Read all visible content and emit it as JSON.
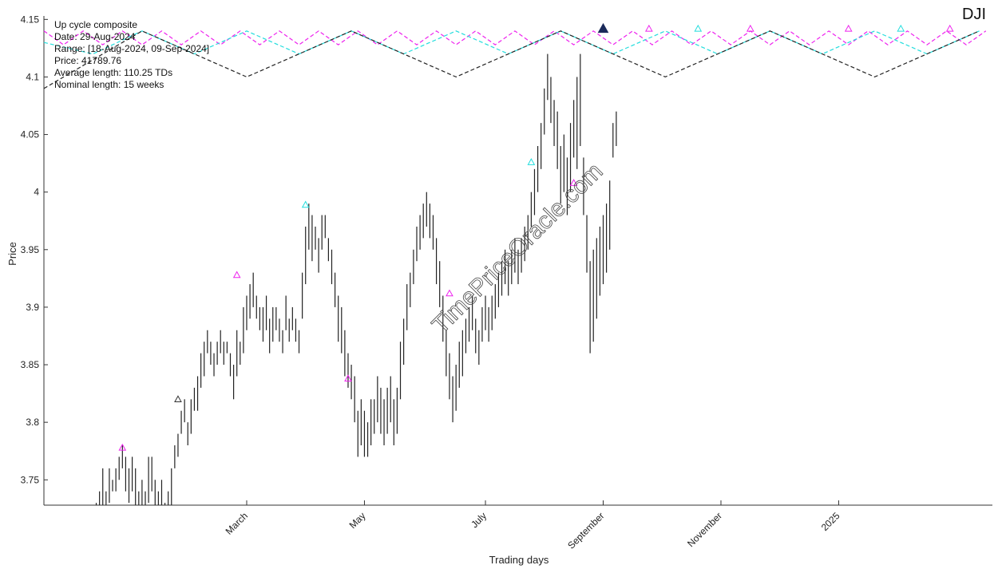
{
  "chart_data": {
    "type": "line",
    "symbol": "DJI",
    "xlabel": "Trading days",
    "ylabel": "Price",
    "ylim": [
      3.728,
      4.153
    ],
    "yticks": [
      3.75,
      3.8,
      3.85,
      3.9,
      3.95,
      4.0,
      4.05,
      4.1,
      4.15
    ],
    "ytick_labels": [
      "3.75",
      "3.8",
      "3.85",
      "3.9",
      "3.95",
      "4",
      "4.05",
      "4.1",
      "4.15"
    ],
    "xlim": [
      0,
      290
    ],
    "xticks": [
      {
        "x": 62,
        "label": "March"
      },
      {
        "x": 98,
        "label": "May"
      },
      {
        "x": 135,
        "label": "July"
      },
      {
        "x": 171,
        "label": "September"
      },
      {
        "x": 207,
        "label": "November"
      },
      {
        "x": 243,
        "label": "2025"
      }
    ],
    "info": {
      "title": "Up cycle composite",
      "date": "Date: 29-Aug-2024",
      "range": "Range: [18-Aug-2024, 09-Sep-2024]",
      "price": "Price: 41789.76",
      "avg_length": "Average length: 110.25 TDs",
      "nominal_length": "Nominal length: 15 weeks"
    },
    "watermark": "TimePriceOracle.com",
    "price_bars": [
      [
        16,
        3.7,
        3.73
      ],
      [
        17,
        3.71,
        3.74
      ],
      [
        18,
        3.72,
        3.76
      ],
      [
        19,
        3.71,
        3.74
      ],
      [
        20,
        3.73,
        3.76
      ],
      [
        21,
        3.74,
        3.75
      ],
      [
        22,
        3.74,
        3.76
      ],
      [
        23,
        3.75,
        3.77
      ],
      [
        24,
        3.76,
        3.78
      ],
      [
        25,
        3.74,
        3.77
      ],
      [
        26,
        3.73,
        3.76
      ],
      [
        27,
        3.74,
        3.77
      ],
      [
        28,
        3.72,
        3.76
      ],
      [
        29,
        3.71,
        3.74
      ],
      [
        30,
        3.72,
        3.75
      ],
      [
        31,
        3.71,
        3.74
      ],
      [
        32,
        3.73,
        3.77
      ],
      [
        33,
        3.74,
        3.77
      ],
      [
        34,
        3.72,
        3.75
      ],
      [
        35,
        3.71,
        3.74
      ],
      [
        36,
        3.72,
        3.75
      ],
      [
        37,
        3.7,
        3.73
      ],
      [
        38,
        3.71,
        3.74
      ],
      [
        39,
        3.72,
        3.76
      ],
      [
        40,
        3.76,
        3.78
      ],
      [
        41,
        3.77,
        3.79
      ],
      [
        42,
        3.79,
        3.81
      ],
      [
        43,
        3.8,
        3.82
      ],
      [
        44,
        3.78,
        3.8
      ],
      [
        45,
        3.79,
        3.82
      ],
      [
        46,
        3.81,
        3.83
      ],
      [
        47,
        3.81,
        3.84
      ],
      [
        48,
        3.83,
        3.86
      ],
      [
        49,
        3.84,
        3.87
      ],
      [
        50,
        3.86,
        3.88
      ],
      [
        51,
        3.85,
        3.87
      ],
      [
        52,
        3.84,
        3.86
      ],
      [
        53,
        3.85,
        3.87
      ],
      [
        54,
        3.86,
        3.88
      ],
      [
        55,
        3.85,
        3.87
      ],
      [
        56,
        3.86,
        3.87
      ],
      [
        57,
        3.84,
        3.86
      ],
      [
        58,
        3.82,
        3.85
      ],
      [
        59,
        3.84,
        3.88
      ],
      [
        60,
        3.85,
        3.87
      ],
      [
        61,
        3.86,
        3.9
      ],
      [
        62,
        3.88,
        3.91
      ],
      [
        63,
        3.89,
        3.92
      ],
      [
        64,
        3.9,
        3.93
      ],
      [
        65,
        3.89,
        3.91
      ],
      [
        66,
        3.88,
        3.9
      ],
      [
        67,
        3.87,
        3.9
      ],
      [
        68,
        3.88,
        3.91
      ],
      [
        69,
        3.86,
        3.89
      ],
      [
        70,
        3.87,
        3.9
      ],
      [
        71,
        3.88,
        3.9
      ],
      [
        72,
        3.87,
        3.89
      ],
      [
        73,
        3.86,
        3.88
      ],
      [
        74,
        3.88,
        3.91
      ],
      [
        75,
        3.87,
        3.89
      ],
      [
        76,
        3.88,
        3.9
      ],
      [
        77,
        3.87,
        3.89
      ],
      [
        78,
        3.86,
        3.88
      ],
      [
        79,
        3.89,
        3.93
      ],
      [
        80,
        3.92,
        3.97
      ],
      [
        81,
        3.95,
        3.99
      ],
      [
        82,
        3.94,
        3.98
      ],
      [
        83,
        3.95,
        3.97
      ],
      [
        84,
        3.93,
        3.96
      ],
      [
        85,
        3.95,
        3.98
      ],
      [
        86,
        3.96,
        3.98
      ],
      [
        87,
        3.94,
        3.96
      ],
      [
        88,
        3.92,
        3.95
      ],
      [
        89,
        3.9,
        3.93
      ],
      [
        90,
        3.87,
        3.91
      ],
      [
        91,
        3.86,
        3.9
      ],
      [
        92,
        3.84,
        3.88
      ],
      [
        93,
        3.83,
        3.86
      ],
      [
        94,
        3.82,
        3.85
      ],
      [
        95,
        3.8,
        3.84
      ],
      [
        96,
        3.77,
        3.81
      ],
      [
        97,
        3.78,
        3.82
      ],
      [
        98,
        3.77,
        3.81
      ],
      [
        99,
        3.77,
        3.8
      ],
      [
        100,
        3.78,
        3.82
      ],
      [
        101,
        3.79,
        3.82
      ],
      [
        102,
        3.8,
        3.84
      ],
      [
        103,
        3.79,
        3.83
      ],
      [
        104,
        3.78,
        3.82
      ],
      [
        105,
        3.79,
        3.83
      ],
      [
        106,
        3.8,
        3.84
      ],
      [
        107,
        3.78,
        3.82
      ],
      [
        108,
        3.79,
        3.83
      ],
      [
        109,
        3.82,
        3.87
      ],
      [
        110,
        3.85,
        3.89
      ],
      [
        111,
        3.88,
        3.92
      ],
      [
        112,
        3.9,
        3.93
      ],
      [
        113,
        3.92,
        3.95
      ],
      [
        114,
        3.94,
        3.97
      ],
      [
        115,
        3.95,
        3.98
      ],
      [
        116,
        3.96,
        3.99
      ],
      [
        117,
        3.97,
        4.0
      ],
      [
        118,
        3.96,
        3.99
      ],
      [
        119,
        3.95,
        3.98
      ],
      [
        120,
        3.92,
        3.96
      ],
      [
        121,
        3.9,
        3.94
      ],
      [
        122,
        3.87,
        3.91
      ],
      [
        123,
        3.84,
        3.88
      ],
      [
        124,
        3.82,
        3.86
      ],
      [
        125,
        3.8,
        3.84
      ],
      [
        126,
        3.81,
        3.85
      ],
      [
        127,
        3.83,
        3.87
      ],
      [
        128,
        3.84,
        3.88
      ],
      [
        129,
        3.86,
        3.89
      ],
      [
        130,
        3.87,
        3.9
      ],
      [
        131,
        3.88,
        3.91
      ],
      [
        132,
        3.86,
        3.89
      ],
      [
        133,
        3.85,
        3.88
      ],
      [
        134,
        3.87,
        3.9
      ],
      [
        135,
        3.88,
        3.91
      ],
      [
        136,
        3.87,
        3.9
      ],
      [
        137,
        3.88,
        3.91
      ],
      [
        138,
        3.89,
        3.92
      ],
      [
        139,
        3.9,
        3.93
      ],
      [
        140,
        3.91,
        3.94
      ],
      [
        141,
        3.92,
        3.95
      ],
      [
        142,
        3.91,
        3.94
      ],
      [
        143,
        3.92,
        3.95
      ],
      [
        144,
        3.93,
        3.96
      ],
      [
        145,
        3.92,
        3.95
      ],
      [
        146,
        3.93,
        3.96
      ],
      [
        147,
        3.94,
        3.97
      ],
      [
        148,
        3.95,
        3.98
      ],
      [
        149,
        3.97,
        4.0
      ],
      [
        150,
        3.98,
        4.02
      ],
      [
        151,
        4.0,
        4.04
      ],
      [
        152,
        4.02,
        4.06
      ],
      [
        153,
        4.05,
        4.09
      ],
      [
        154,
        4.08,
        4.12
      ],
      [
        155,
        4.06,
        4.1
      ],
      [
        156,
        4.04,
        4.08
      ],
      [
        157,
        4.02,
        4.07
      ],
      [
        158,
        3.99,
        4.04
      ],
      [
        159,
        4.0,
        4.05
      ],
      [
        160,
        3.98,
        4.03
      ],
      [
        161,
        4.0,
        4.06
      ],
      [
        162,
        4.03,
        4.08
      ],
      [
        163,
        4.02,
        4.1
      ],
      [
        164,
        4.04,
        4.12
      ],
      [
        165,
        3.98,
        4.03
      ],
      [
        166,
        3.93,
        3.98
      ],
      [
        167,
        3.86,
        3.94
      ],
      [
        168,
        3.87,
        3.95
      ],
      [
        169,
        3.89,
        3.96
      ],
      [
        170,
        3.91,
        3.97
      ],
      [
        171,
        3.92,
        3.98
      ],
      [
        172,
        3.93,
        3.99
      ],
      [
        173,
        3.95,
        4.01
      ],
      [
        174,
        4.03,
        4.06
      ],
      [
        175,
        4.04,
        4.07
      ]
    ],
    "cycle_lines": [
      {
        "name": "magenta",
        "color": "#ee22ee",
        "amplitude": 0.012,
        "points": [
          [
            0,
            4.14
          ],
          [
            6,
            4.128
          ],
          [
            12,
            4.14
          ],
          [
            18,
            4.128
          ],
          [
            24,
            4.14
          ],
          [
            30,
            4.128
          ],
          [
            36,
            4.14
          ],
          [
            42,
            4.128
          ],
          [
            48,
            4.14
          ],
          [
            54,
            4.128
          ],
          [
            60,
            4.14
          ],
          [
            66,
            4.128
          ],
          [
            72,
            4.14
          ],
          [
            78,
            4.128
          ],
          [
            84,
            4.14
          ],
          [
            90,
            4.128
          ],
          [
            96,
            4.14
          ],
          [
            102,
            4.128
          ],
          [
            108,
            4.14
          ],
          [
            114,
            4.128
          ],
          [
            120,
            4.14
          ],
          [
            126,
            4.128
          ],
          [
            132,
            4.14
          ],
          [
            138,
            4.128
          ],
          [
            144,
            4.14
          ],
          [
            150,
            4.128
          ],
          [
            156,
            4.14
          ],
          [
            162,
            4.128
          ],
          [
            168,
            4.14
          ],
          [
            174,
            4.128
          ],
          [
            180,
            4.14
          ],
          [
            186,
            4.128
          ],
          [
            192,
            4.14
          ],
          [
            198,
            4.128
          ],
          [
            204,
            4.14
          ],
          [
            210,
            4.128
          ],
          [
            216,
            4.14
          ],
          [
            222,
            4.128
          ],
          [
            228,
            4.14
          ],
          [
            234,
            4.128
          ],
          [
            240,
            4.14
          ],
          [
            246,
            4.128
          ],
          [
            252,
            4.14
          ],
          [
            258,
            4.128
          ],
          [
            264,
            4.14
          ],
          [
            270,
            4.128
          ],
          [
            276,
            4.14
          ],
          [
            282,
            4.128
          ],
          [
            288,
            4.14
          ]
        ]
      },
      {
        "name": "cyan",
        "color": "#22dddd",
        "points": [
          [
            0,
            4.13
          ],
          [
            15,
            4.12
          ],
          [
            30,
            4.14
          ],
          [
            46,
            4.12
          ],
          [
            62,
            4.14
          ],
          [
            78,
            4.12
          ],
          [
            94,
            4.14
          ],
          [
            110,
            4.12
          ],
          [
            126,
            4.14
          ],
          [
            142,
            4.12
          ],
          [
            158,
            4.14
          ],
          [
            174,
            4.12
          ],
          [
            190,
            4.14
          ],
          [
            206,
            4.12
          ],
          [
            222,
            4.14
          ],
          [
            238,
            4.12
          ],
          [
            254,
            4.14
          ],
          [
            270,
            4.12
          ],
          [
            286,
            4.14
          ]
        ]
      },
      {
        "name": "black",
        "color": "#222222",
        "points": [
          [
            0,
            4.09
          ],
          [
            30,
            4.14
          ],
          [
            62,
            4.1
          ],
          [
            94,
            4.14
          ],
          [
            126,
            4.1
          ],
          [
            158,
            4.14
          ],
          [
            190,
            4.1
          ],
          [
            222,
            4.14
          ],
          [
            254,
            4.1
          ],
          [
            286,
            4.14
          ]
        ]
      }
    ],
    "markers": [
      {
        "x": 24,
        "y": 3.778,
        "color": "#ee22ee"
      },
      {
        "x": 41,
        "y": 3.82,
        "color": "#333333"
      },
      {
        "x": 59,
        "y": 3.928,
        "color": "#ee22ee"
      },
      {
        "x": 80,
        "y": 3.989,
        "color": "#22dddd"
      },
      {
        "x": 93,
        "y": 3.838,
        "color": "#ee22ee"
      },
      {
        "x": 124,
        "y": 3.912,
        "color": "#ee22ee"
      },
      {
        "x": 149,
        "y": 4.026,
        "color": "#22dddd"
      },
      {
        "x": 162,
        "y": 4.008,
        "color": "#ee22ee"
      },
      {
        "x": 171,
        "y": 4.142,
        "color": "#1a2a5a",
        "filled": true
      },
      {
        "x": 185,
        "y": 4.142,
        "color": "#ee22ee"
      },
      {
        "x": 200,
        "y": 4.142,
        "color": "#22dddd"
      },
      {
        "x": 216,
        "y": 4.142,
        "color": "#ee22ee"
      },
      {
        "x": 246,
        "y": 4.142,
        "color": "#ee22ee"
      },
      {
        "x": 262,
        "y": 4.142,
        "color": "#22dddd"
      },
      {
        "x": 277,
        "y": 4.142,
        "color": "#ee22ee"
      }
    ]
  }
}
